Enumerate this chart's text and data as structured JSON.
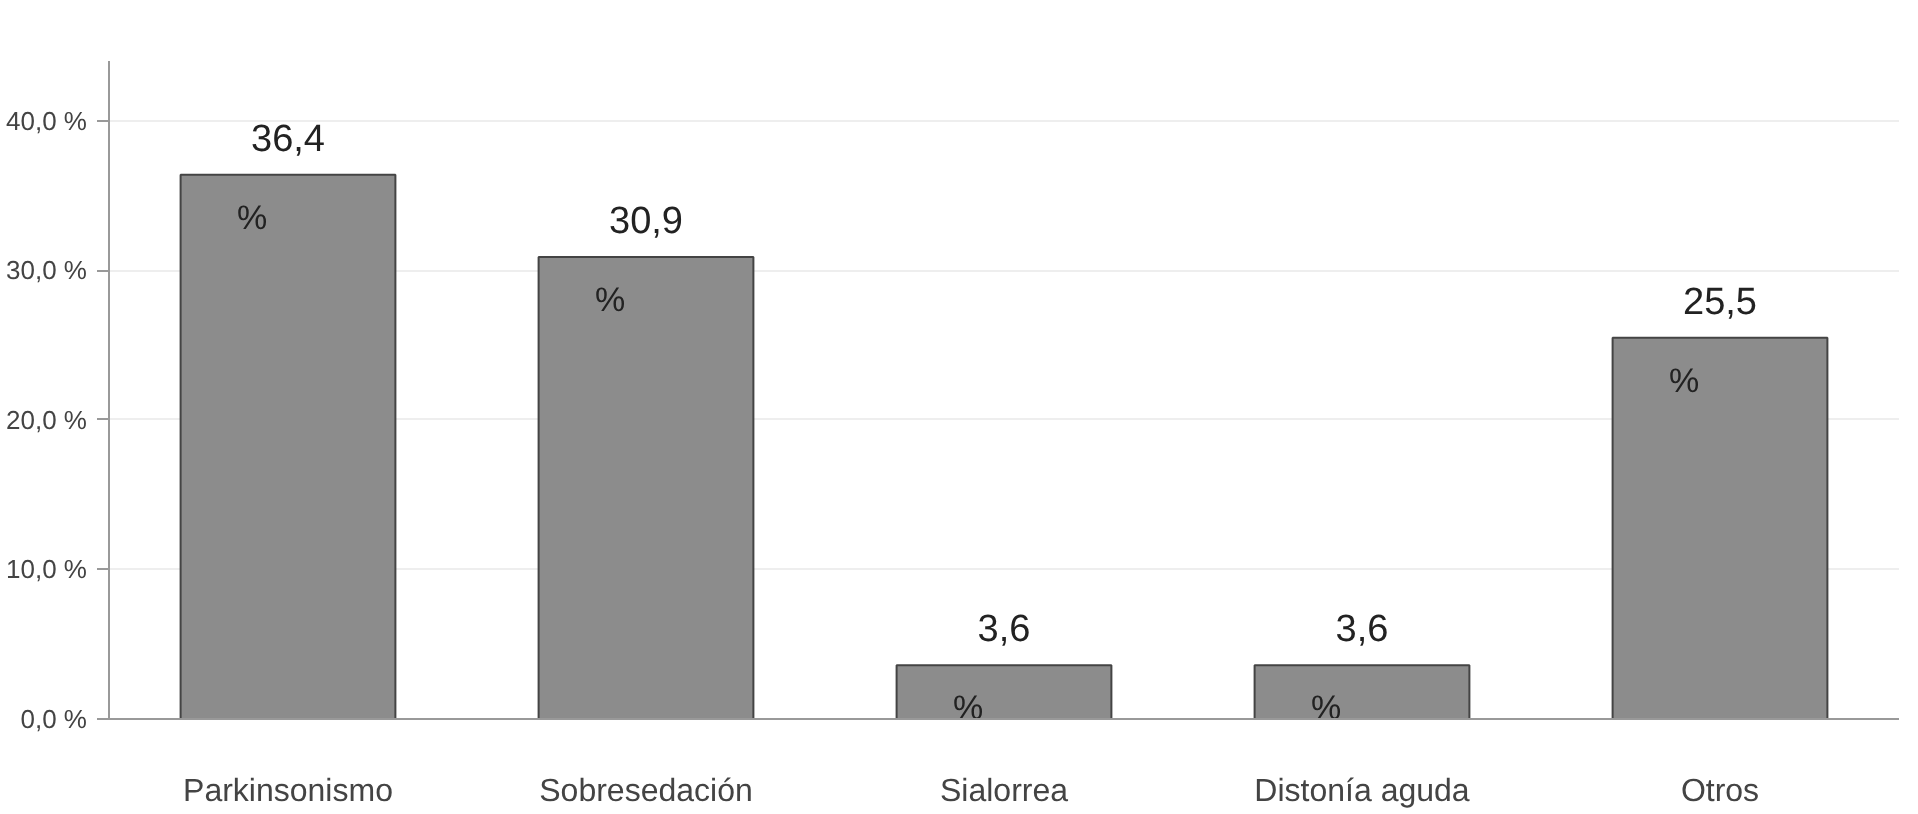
{
  "chart_data": {
    "type": "bar",
    "categories": [
      "Parkinsonismo",
      "Sobresedación",
      "Sialorrea",
      "Distonía aguda",
      "Otros"
    ],
    "values": [
      36.4,
      30.9,
      3.6,
      3.6,
      25.5
    ],
    "value_labels": [
      "36,4 %",
      "30,9 %",
      "3,6 %",
      "3,6 %",
      "25,5 %"
    ],
    "color": "#8c8c8c",
    "ylim": [
      0,
      44
    ],
    "yticks": [
      {
        "value": 0,
        "label": "0,0 %"
      },
      {
        "value": 10,
        "label": "10,0 %"
      },
      {
        "value": 20,
        "label": "20,0 %"
      },
      {
        "value": 30,
        "label": "30,0 %"
      },
      {
        "value": 40,
        "label": "40,0 %"
      }
    ],
    "grid": "y"
  }
}
